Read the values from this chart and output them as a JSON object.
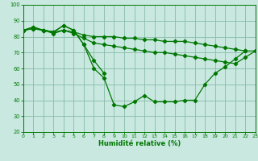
{
  "xlabel": "Humidité relative (%)",
  "background_color": "#c8e8e0",
  "grid_color": "#88bba8",
  "line_color": "#007700",
  "xlim": [
    0,
    23
  ],
  "ylim": [
    20,
    100
  ],
  "xticks": [
    0,
    1,
    2,
    3,
    4,
    5,
    6,
    7,
    8,
    9,
    10,
    11,
    12,
    13,
    14,
    15,
    16,
    17,
    18,
    19,
    20,
    21,
    22,
    23
  ],
  "yticks": [
    20,
    30,
    40,
    50,
    60,
    70,
    80,
    90,
    100
  ],
  "curves": [
    {
      "x": [
        0,
        1,
        2,
        3,
        4,
        5,
        6,
        7,
        8,
        9,
        10,
        11,
        12,
        13,
        14,
        15,
        16,
        17,
        18,
        19,
        20,
        21,
        22,
        23
      ],
      "y": [
        84,
        85,
        84,
        83,
        84,
        83,
        81,
        80,
        80,
        80,
        79,
        79,
        78,
        78,
        77,
        77,
        77,
        76,
        75,
        74,
        73,
        72,
        71,
        71
      ]
    },
    {
      "x": [
        0,
        1,
        2,
        3,
        4,
        5,
        6,
        7,
        8,
        9,
        10,
        11,
        12,
        13,
        14,
        15,
        16,
        17,
        18,
        19,
        20,
        21,
        22,
        23
      ],
      "y": [
        84,
        85,
        84,
        82,
        84,
        82,
        79,
        76,
        75,
        74,
        73,
        72,
        71,
        70,
        70,
        69,
        68,
        67,
        66,
        65,
        64,
        63,
        67,
        71
      ]
    },
    {
      "x": [
        0,
        1,
        2,
        3,
        4,
        5,
        6,
        7,
        8,
        9,
        10,
        11,
        12,
        13,
        14,
        15,
        16,
        17,
        18,
        19,
        20,
        21,
        22
      ],
      "y": [
        84,
        86,
        84,
        83,
        87,
        84,
        75,
        65,
        57,
        null,
        null,
        null,
        null,
        null,
        null,
        null,
        null,
        null,
        null,
        null,
        null,
        null,
        71
      ]
    },
    {
      "x": [
        0,
        1,
        2,
        3,
        4,
        5,
        6,
        7,
        8,
        9,
        10,
        11,
        12,
        13,
        14,
        15,
        16,
        17,
        18,
        19,
        20,
        21,
        22
      ],
      "y": [
        84,
        86,
        84,
        83,
        87,
        84,
        75,
        60,
        54,
        37,
        36,
        39,
        43,
        39,
        39,
        39,
        40,
        40,
        50,
        57,
        61,
        66,
        71
      ]
    }
  ]
}
